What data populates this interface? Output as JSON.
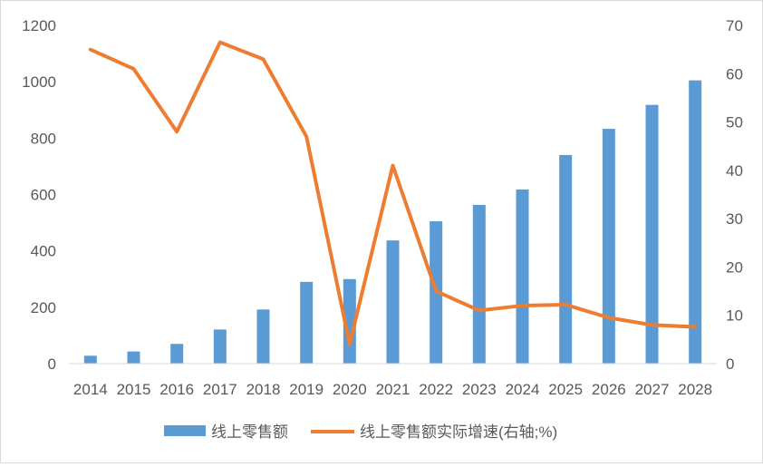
{
  "chart_data": {
    "type": "bar",
    "categories": [
      "2014",
      "2015",
      "2016",
      "2017",
      "2018",
      "2019",
      "2020",
      "2021",
      "2022",
      "2023",
      "2024",
      "2025",
      "2026",
      "2027",
      "2028"
    ],
    "series": [
      {
        "name": "线上零售额",
        "type": "bar",
        "axis": "left",
        "color": "#5B9BD5",
        "values": [
          28,
          43,
          70,
          121,
          192,
          290,
          300,
          437,
          505,
          563,
          618,
          740,
          833,
          918,
          1005
        ]
      },
      {
        "name": "线上零售额实际增速(右轴;%)",
        "type": "line",
        "axis": "right",
        "color": "#ED7D31",
        "values": [
          65,
          61,
          48,
          66.5,
          63,
          47,
          4,
          41,
          15,
          11,
          12,
          12.2,
          9.5,
          8,
          7.6
        ]
      }
    ],
    "y_left": {
      "ylim": [
        0,
        1200
      ],
      "ticks": [
        "0",
        "200",
        "400",
        "600",
        "800",
        "1000",
        "1200"
      ]
    },
    "y_right": {
      "ylim": [
        0,
        70
      ],
      "ticks": [
        "0",
        "10",
        "20",
        "30",
        "40",
        "50",
        "60",
        "70"
      ]
    },
    "grid": false,
    "legend_position": "bottom"
  }
}
